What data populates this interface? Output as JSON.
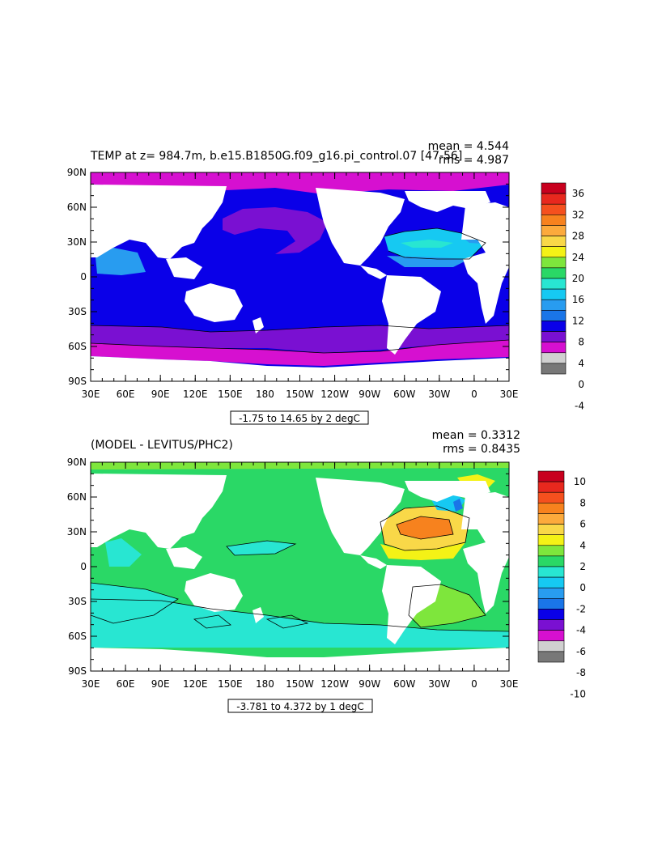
{
  "panels": [
    {
      "title": "TEMP at z= 984.7m, b.e15.B1850G.f09_g16.pi_control.07 [47-56]",
      "mean_text": "mean = 4.544",
      "rms_text": "rms = 4.987",
      "range_text": "-1.75 to 14.65 by 2 degC",
      "colorbar_labels": [
        "36",
        "32",
        "28",
        "24",
        "20",
        "16",
        "12",
        "8",
        "4",
        "0",
        "-4"
      ],
      "colorbar_colors": [
        "#c8001e",
        "#e8281e",
        "#f5501e",
        "#f7821e",
        "#fcaa3c",
        "#f9d848",
        "#f4f216",
        "#7ee63c",
        "#2ad866",
        "#28e6d2",
        "#16c9f2",
        "#289cf0",
        "#1a75e8",
        "#0a00e8",
        "#7a10d2",
        "#d610d0",
        "#d0d0d0",
        "#787878"
      ]
    },
    {
      "title": "(MODEL - LEVITUS/PHC2)",
      "mean_text": "mean = 0.3312",
      "rms_text": "rms = 0.8435",
      "range_text": "-3.781 to 4.372 by 1 degC",
      "colorbar_labels": [
        "10",
        "8",
        "6",
        "4",
        "2",
        "0",
        "-2",
        "-4",
        "-6",
        "-8",
        "-10"
      ],
      "colorbar_colors": [
        "#c8001e",
        "#e8281e",
        "#f5501e",
        "#f7821e",
        "#fcaa3c",
        "#f9d848",
        "#f4f216",
        "#7ee63c",
        "#2ad866",
        "#28e6d2",
        "#16c9f2",
        "#289cf0",
        "#1a75e8",
        "#0a00e8",
        "#7a10d2",
        "#d610d0",
        "#d0d0d0",
        "#787878"
      ]
    }
  ],
  "axes": {
    "lat_labels": [
      "90N",
      "60N",
      "30N",
      "0",
      "30S",
      "60S",
      "90S"
    ],
    "lon_labels": [
      "30E",
      "60E",
      "90E",
      "120E",
      "150E",
      "180",
      "150W",
      "120W",
      "90W",
      "60W",
      "30W",
      "0",
      "30E"
    ]
  },
  "colors": {
    "ocean_top": "#0a00e8",
    "ocean_bottom": "#2ad866",
    "land": "#ffffff"
  }
}
